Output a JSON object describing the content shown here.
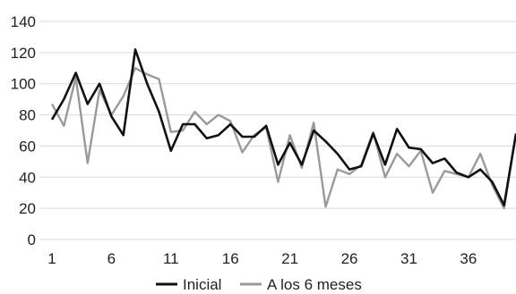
{
  "chart_data": {
    "type": "line",
    "x": [
      1,
      2,
      3,
      4,
      5,
      6,
      7,
      8,
      9,
      10,
      11,
      12,
      13,
      14,
      15,
      16,
      17,
      18,
      19,
      20,
      21,
      22,
      23,
      24,
      25,
      26,
      27,
      28,
      29,
      30,
      31,
      32,
      33,
      34,
      35,
      36,
      37,
      38,
      39,
      40
    ],
    "xticks": [
      "1",
      "6",
      "11",
      "16",
      "21",
      "26",
      "31",
      "36"
    ],
    "xtick_values": [
      1,
      6,
      11,
      16,
      21,
      26,
      31,
      36
    ],
    "yticks": [
      "0",
      "20",
      "40",
      "60",
      "80",
      "100",
      "120",
      "140"
    ],
    "ylim": [
      0,
      140
    ],
    "xlim": [
      1,
      40
    ],
    "grid": true,
    "legend_position": "bottom",
    "series": [
      {
        "name": "Inicial",
        "color": "#111111",
        "values": [
          77,
          90,
          107,
          87,
          100,
          79,
          67,
          122,
          100,
          82,
          57,
          74,
          74,
          65,
          67,
          74,
          66,
          66,
          73,
          48,
          62,
          48,
          70,
          63,
          55,
          45,
          47,
          68,
          48,
          71,
          59,
          58,
          49,
          52,
          43,
          40,
          45,
          37,
          22,
          68
        ]
      },
      {
        "name": "A los 6 meses",
        "color": "#9a9a9a",
        "values": [
          87,
          73,
          104,
          49,
          96,
          80,
          92,
          110,
          106,
          103,
          69,
          70,
          82,
          74,
          80,
          76,
          56,
          67,
          72,
          37,
          67,
          46,
          75,
          21,
          45,
          42,
          48,
          69,
          40,
          55,
          47,
          57,
          30,
          44,
          42,
          40,
          55,
          35,
          20,
          68
        ]
      }
    ]
  }
}
